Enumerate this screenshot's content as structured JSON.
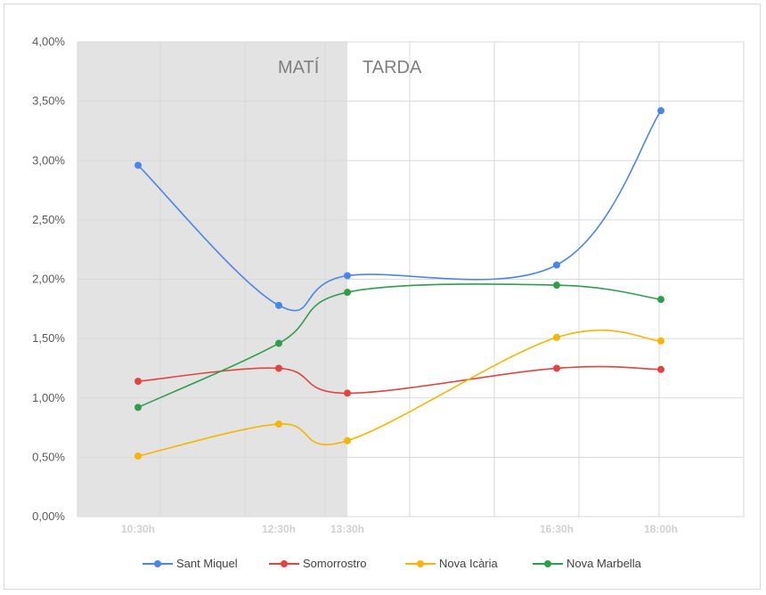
{
  "chart_data": {
    "type": "line",
    "x_labels": [
      "10:30h",
      "12:30h",
      "13:30h",
      "16:30h",
      "18:00h"
    ],
    "y_ticks": [
      "0,00%",
      "0,50%",
      "1,00%",
      "1,50%",
      "2,00%",
      "2,50%",
      "3,00%",
      "3,50%",
      "4,00%"
    ],
    "ylim": [
      0,
      4
    ],
    "grid": true,
    "legend_position": "bottom",
    "shaded_region": {
      "label_left": "MATÍ",
      "label_right": "TARDA"
    },
    "series": [
      {
        "name": "Sant Miquel",
        "color": "#4a86e8",
        "values": [
          2.96,
          1.78,
          2.03,
          2.12,
          3.42
        ]
      },
      {
        "name": "Somorrostro",
        "color": "#e0443e",
        "values": [
          1.14,
          1.25,
          1.04,
          1.25,
          1.24
        ]
      },
      {
        "name": "Nova Icària",
        "color": "#f6b500",
        "values": [
          0.51,
          0.78,
          0.64,
          1.51,
          1.48
        ]
      },
      {
        "name": "Nova Marbella",
        "color": "#2e9e49",
        "values": [
          0.92,
          1.46,
          1.89,
          1.95,
          1.83
        ]
      }
    ]
  }
}
